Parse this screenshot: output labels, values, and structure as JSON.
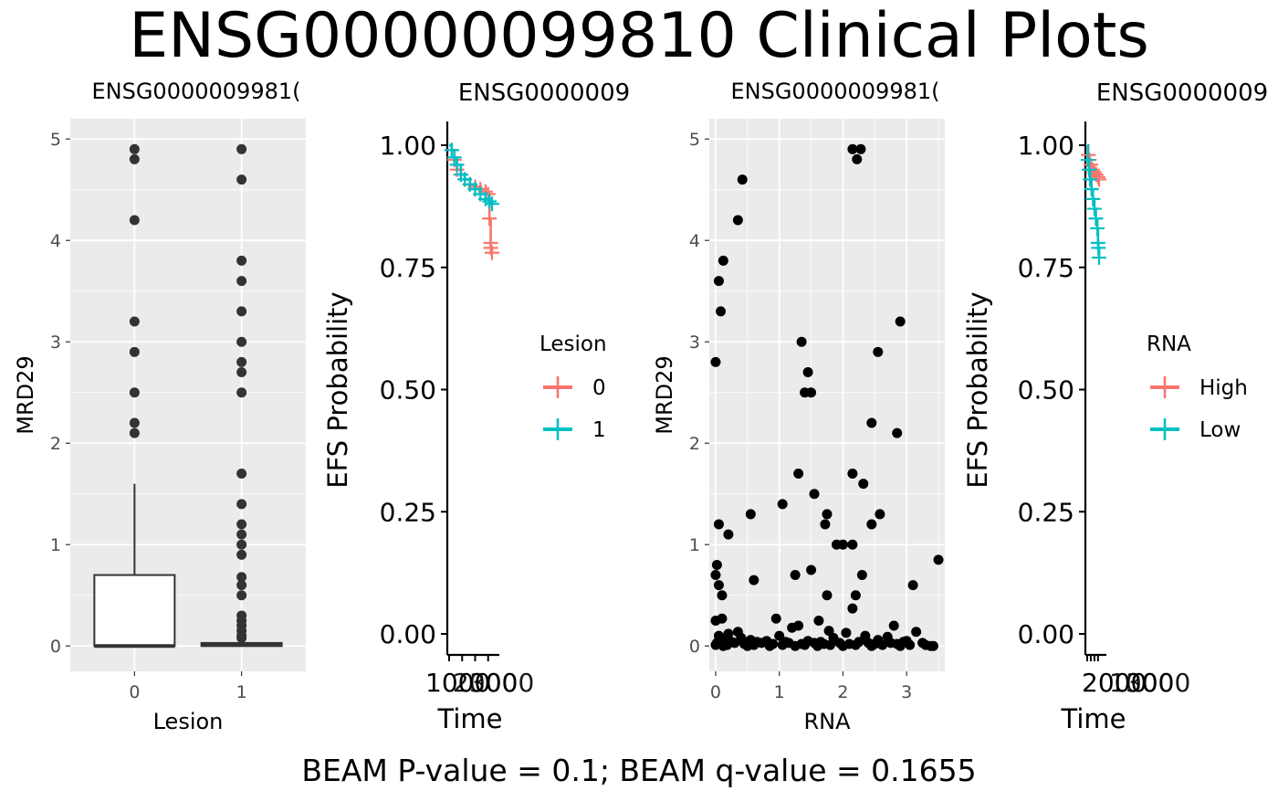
{
  "title": "ENSG00000099810 Clinical Plots",
  "footer": "BEAM P-value = 0.1; BEAM q-value = 0.1655",
  "colors": {
    "panel_bg": "#EBEBEB",
    "grid": "#FFFFFF",
    "group_a": "#F8766D",
    "group_b": "#00BFC4",
    "points": "#000000",
    "box_outline": "#333333"
  },
  "chart_data": [
    {
      "type": "box",
      "panel_title": "ENSG0000009981(",
      "xlabel": "Lesion",
      "ylabel": "MRD29",
      "ylim": [
        -0.25,
        5.2
      ],
      "yticks": [
        0,
        1,
        2,
        3,
        4,
        5
      ],
      "categories": [
        "0",
        "1"
      ],
      "boxes": [
        {
          "category": "0",
          "q1": 0.0,
          "median": 0.0,
          "q3": 0.7,
          "whisker_low": 0.0,
          "whisker_high": 1.6,
          "outliers": [
            2.1,
            2.2,
            2.5,
            2.9,
            3.2,
            4.2,
            4.8,
            4.9
          ]
        },
        {
          "category": "1",
          "q1": 0.0,
          "median": 0.01,
          "q3": 0.03,
          "whisker_low": 0.0,
          "whisker_high": 0.05,
          "outliers": [
            0.08,
            0.1,
            0.15,
            0.2,
            0.25,
            0.3,
            0.5,
            0.6,
            0.68,
            0.9,
            1.0,
            1.1,
            1.2,
            1.4,
            1.7,
            2.5,
            2.7,
            2.8,
            3.0,
            3.3,
            3.6,
            3.8,
            4.6,
            4.9
          ]
        }
      ]
    },
    {
      "type": "line",
      "panel_title": "ENSG0000009",
      "xlabel": "Time",
      "ylabel": "EFS Probability",
      "ylim": [
        -0.05,
        1.05
      ],
      "yticks": [
        "0.00",
        "0.25",
        "0.50",
        "0.75",
        "1.00"
      ],
      "xtick_text": "1000",
      "xtick_overlap": "2000 3000",
      "legend_title": "Lesion",
      "series": [
        {
          "name": "0",
          "x": [
            0,
            200,
            400,
            600,
            900,
            1200,
            1600,
            2000,
            2400,
            2800,
            3000,
            3100,
            3200,
            3200,
            3300
          ],
          "y": [
            1.0,
            0.99,
            0.97,
            0.95,
            0.94,
            0.93,
            0.92,
            0.915,
            0.91,
            0.905,
            0.9,
            0.85,
            0.8,
            0.79,
            0.78
          ]
        },
        {
          "name": "1",
          "x": [
            0,
            200,
            400,
            600,
            900,
            1200,
            1600,
            2000,
            2400,
            2800,
            3100,
            3300
          ],
          "y": [
            1.0,
            0.99,
            0.975,
            0.96,
            0.94,
            0.93,
            0.92,
            0.91,
            0.9,
            0.89,
            0.885,
            0.88
          ]
        }
      ]
    },
    {
      "type": "scatter",
      "panel_title": "ENSG0000009981(",
      "xlabel": "RNA",
      "ylabel": "MRD29",
      "xlim": [
        -0.1,
        3.6
      ],
      "ylim": [
        -0.25,
        5.2
      ],
      "xticks": [
        0,
        1,
        2,
        3
      ],
      "yticks": [
        0,
        1,
        2,
        3,
        4,
        5
      ],
      "points": [
        [
          0.0,
          2.8
        ],
        [
          0.05,
          3.6
        ],
        [
          0.08,
          3.3
        ],
        [
          0.12,
          3.8
        ],
        [
          0.35,
          4.2
        ],
        [
          0.42,
          4.6
        ],
        [
          2.15,
          4.9
        ],
        [
          2.22,
          4.8
        ],
        [
          2.28,
          4.9
        ],
        [
          2.9,
          3.2
        ],
        [
          1.35,
          3.0
        ],
        [
          1.45,
          2.7
        ],
        [
          1.4,
          2.5
        ],
        [
          1.5,
          2.5
        ],
        [
          2.55,
          2.9
        ],
        [
          2.45,
          2.2
        ],
        [
          2.85,
          2.1
        ],
        [
          1.3,
          1.7
        ],
        [
          2.15,
          1.7
        ],
        [
          2.32,
          1.6
        ],
        [
          1.55,
          1.5
        ],
        [
          1.05,
          1.4
        ],
        [
          0.55,
          1.3
        ],
        [
          1.75,
          1.3
        ],
        [
          2.58,
          1.3
        ],
        [
          0.05,
          1.2
        ],
        [
          1.72,
          1.2
        ],
        [
          2.45,
          1.2
        ],
        [
          0.2,
          1.1
        ],
        [
          1.9,
          1.0
        ],
        [
          2.0,
          1.0
        ],
        [
          2.15,
          1.0
        ],
        [
          3.5,
          0.85
        ],
        [
          0.02,
          0.8
        ],
        [
          1.5,
          0.75
        ],
        [
          0.0,
          0.7
        ],
        [
          1.25,
          0.7
        ],
        [
          2.3,
          0.7
        ],
        [
          0.6,
          0.65
        ],
        [
          0.05,
          0.6
        ],
        [
          3.1,
          0.6
        ],
        [
          0.1,
          0.5
        ],
        [
          1.75,
          0.5
        ],
        [
          2.2,
          0.5
        ],
        [
          2.15,
          0.37
        ],
        [
          0.1,
          0.27
        ],
        [
          0.95,
          0.27
        ],
        [
          1.62,
          0.25
        ],
        [
          0.0,
          0.25
        ],
        [
          2.8,
          0.2
        ],
        [
          1.3,
          0.2
        ],
        [
          1.2,
          0.18
        ],
        [
          1.78,
          0.15
        ],
        [
          3.15,
          0.14
        ],
        [
          0.35,
          0.14
        ],
        [
          2.05,
          0.13
        ],
        [
          0.2,
          0.12
        ],
        [
          0.05,
          0.1
        ],
        [
          1.0,
          0.1
        ],
        [
          2.35,
          0.1
        ],
        [
          2.7,
          0.09
        ],
        [
          0.4,
          0.08
        ],
        [
          1.85,
          0.08
        ],
        [
          0.15,
          0.07
        ],
        [
          0.55,
          0.06
        ],
        [
          2.55,
          0.06
        ],
        [
          0.8,
          0.05
        ],
        [
          1.45,
          0.05
        ],
        [
          3.0,
          0.05
        ],
        [
          0.25,
          0.04
        ],
        [
          0.65,
          0.04
        ],
        [
          1.1,
          0.04
        ],
        [
          1.65,
          0.04
        ],
        [
          2.25,
          0.04
        ],
        [
          2.95,
          0.04
        ],
        [
          0.02,
          0.03
        ],
        [
          0.3,
          0.03
        ],
        [
          0.72,
          0.03
        ],
        [
          1.15,
          0.03
        ],
        [
          1.55,
          0.03
        ],
        [
          1.95,
          0.03
        ],
        [
          2.4,
          0.03
        ],
        [
          2.75,
          0.03
        ],
        [
          3.25,
          0.03
        ],
        [
          0.08,
          0.02
        ],
        [
          0.45,
          0.02
        ],
        [
          0.9,
          0.02
        ],
        [
          1.35,
          0.02
        ],
        [
          1.7,
          0.02
        ],
        [
          2.1,
          0.02
        ],
        [
          2.5,
          0.02
        ],
        [
          2.85,
          0.02
        ],
        [
          3.3,
          0.01
        ],
        [
          0.0,
          0.01
        ],
        [
          0.18,
          0.01
        ],
        [
          0.6,
          0.01
        ],
        [
          1.05,
          0.01
        ],
        [
          1.4,
          0.01
        ],
        [
          1.8,
          0.01
        ],
        [
          2.2,
          0.01
        ],
        [
          2.62,
          0.01
        ],
        [
          3.05,
          0.01
        ],
        [
          3.38,
          0.0
        ],
        [
          0.12,
          0.0
        ],
        [
          0.5,
          0.0
        ],
        [
          0.85,
          0.0
        ],
        [
          1.25,
          0.0
        ],
        [
          1.6,
          0.0
        ],
        [
          2.0,
          0.0
        ],
        [
          2.45,
          0.0
        ],
        [
          2.9,
          0.0
        ],
        [
          3.42,
          0.0
        ]
      ]
    },
    {
      "type": "line",
      "panel_title": "ENSG0000009",
      "xlabel": "Time",
      "ylabel": "EFS Probability",
      "ylim": [
        -0.05,
        1.05
      ],
      "yticks": [
        "0.00",
        "0.25",
        "0.50",
        "0.75",
        "1.00"
      ],
      "xtick_text": "2000",
      "xtick_overlap": "1000 3000",
      "legend_title": "RNA",
      "series": [
        {
          "name": "High",
          "x": [
            0,
            300,
            600,
            1000,
            1500,
            2000,
            2500,
            3000,
            3300
          ],
          "y": [
            1.0,
            0.98,
            0.97,
            0.96,
            0.95,
            0.945,
            0.94,
            0.935,
            0.93
          ]
        },
        {
          "name": "Low",
          "x": [
            0,
            200,
            500,
            800,
            1200,
            1600,
            2000,
            2400,
            2800,
            3000,
            3100,
            3300
          ],
          "y": [
            1.0,
            0.97,
            0.95,
            0.93,
            0.91,
            0.89,
            0.87,
            0.85,
            0.83,
            0.8,
            0.79,
            0.77
          ]
        }
      ]
    }
  ]
}
